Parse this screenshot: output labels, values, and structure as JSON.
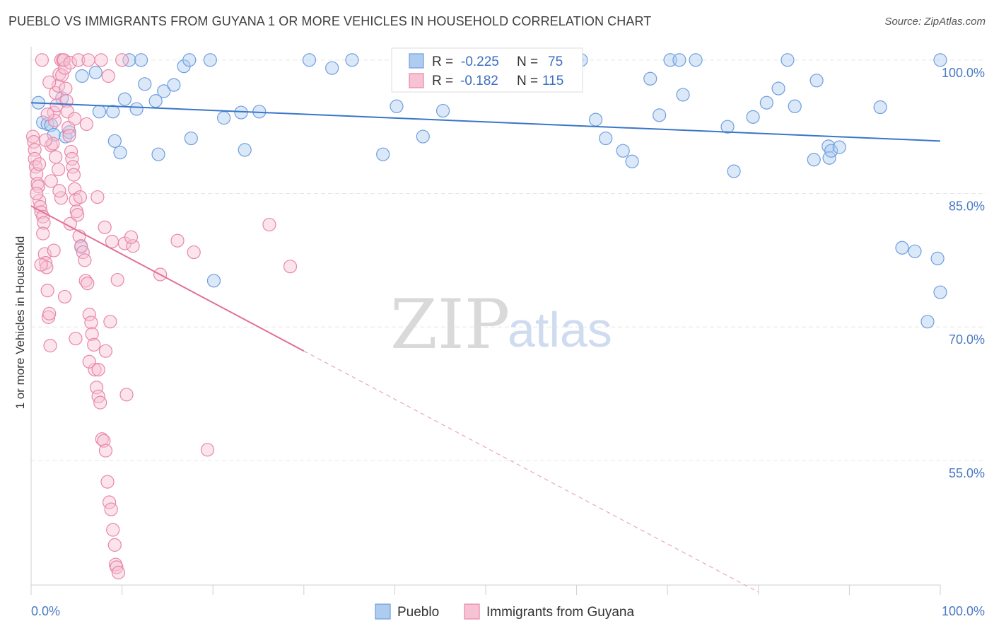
{
  "title": "PUEBLO VS IMMIGRANTS FROM GUYANA 1 OR MORE VEHICLES IN HOUSEHOLD CORRELATION CHART",
  "source": "Source: ZipAtlas.com",
  "watermark": {
    "zip": "ZIP",
    "atlas": "atlas"
  },
  "chart_data": {
    "type": "scatter",
    "ylabel": "1 or more Vehicles in Household",
    "xlim": [
      0,
      100
    ],
    "ylim": [
      41,
      101.5
    ],
    "x_tick_labels": [
      {
        "value": 0,
        "label": "0.0%"
      },
      {
        "value": 100,
        "label": "100.0%"
      }
    ],
    "y_tick_labels": [
      {
        "value": 100,
        "label": "100.0%"
      },
      {
        "value": 85,
        "label": "85.0%"
      },
      {
        "value": 70,
        "label": "70.0%"
      },
      {
        "value": 55,
        "label": "55.0%"
      }
    ],
    "grid": true,
    "legend": {
      "placement": "top-center",
      "r_label": "R =",
      "n_label": "N =",
      "entries": [
        {
          "series": "Pueblo",
          "r": "-0.225",
          "n": "75"
        },
        {
          "series": "Immigrants from Guyana",
          "r": "-0.182",
          "n": "115"
        }
      ]
    },
    "series": [
      {
        "name": "Pueblo",
        "color": "#6f9ee0",
        "fill": "#aecbf0",
        "trend": {
          "x0": 0,
          "y0": 95.2,
          "x1": 100,
          "y1": 90.9,
          "dashed_to": null
        },
        "points": [
          [
            0.8,
            95.2
          ],
          [
            1.3,
            93.0
          ],
          [
            1.8,
            92.8
          ],
          [
            2.2,
            92.7
          ],
          [
            2.5,
            91.6
          ],
          [
            3.4,
            95.7
          ],
          [
            3.8,
            91.4
          ],
          [
            4.2,
            91.9
          ],
          [
            5.6,
            98.2
          ],
          [
            7.1,
            98.6
          ],
          [
            7.5,
            94.2
          ],
          [
            9.0,
            94.2
          ],
          [
            9.2,
            90.9
          ],
          [
            9.8,
            89.6
          ],
          [
            10.3,
            95.6
          ],
          [
            10.8,
            100
          ],
          [
            11.6,
            94.5
          ],
          [
            12.1,
            100
          ],
          [
            12.5,
            97.3
          ],
          [
            13.7,
            95.4
          ],
          [
            14.0,
            89.4
          ],
          [
            14.6,
            96.5
          ],
          [
            15.7,
            97.2
          ],
          [
            16.8,
            99.3
          ],
          [
            17.4,
            100
          ],
          [
            17.6,
            91.2
          ],
          [
            19.7,
            100
          ],
          [
            20.1,
            75.2
          ],
          [
            21.2,
            93.5
          ],
          [
            23.1,
            94.1
          ],
          [
            23.5,
            89.9
          ],
          [
            25.1,
            94.2
          ],
          [
            30.6,
            100
          ],
          [
            33.1,
            99.1
          ],
          [
            35.3,
            100
          ],
          [
            38.7,
            89.4
          ],
          [
            40.2,
            94.8
          ],
          [
            43.1,
            91.4
          ],
          [
            45.3,
            94.3
          ],
          [
            47.3,
            100
          ],
          [
            50.4,
            100
          ],
          [
            57.7,
            100
          ],
          [
            60.0,
            100
          ],
          [
            60.5,
            100
          ],
          [
            62.1,
            93.3
          ],
          [
            63.2,
            91.2
          ],
          [
            65.1,
            89.8
          ],
          [
            66.1,
            88.6
          ],
          [
            68.1,
            97.9
          ],
          [
            69.1,
            93.8
          ],
          [
            70.3,
            100
          ],
          [
            71.3,
            100
          ],
          [
            71.7,
            96.1
          ],
          [
            73.1,
            100
          ],
          [
            76.6,
            92.5
          ],
          [
            77.3,
            87.5
          ],
          [
            79.4,
            93.6
          ],
          [
            80.9,
            95.2
          ],
          [
            82.2,
            96.8
          ],
          [
            83.2,
            100
          ],
          [
            84.0,
            94.8
          ],
          [
            86.1,
            88.8
          ],
          [
            86.4,
            97.7
          ],
          [
            87.7,
            90.3
          ],
          [
            87.8,
            89.0
          ],
          [
            88.0,
            89.8
          ],
          [
            88.9,
            90.2
          ],
          [
            93.4,
            94.7
          ],
          [
            95.8,
            78.9
          ],
          [
            97.2,
            78.5
          ],
          [
            98.6,
            70.6
          ],
          [
            99.7,
            77.7
          ],
          [
            100.0,
            73.9
          ],
          [
            100,
            100
          ],
          [
            5.5,
            79.0
          ]
        ]
      },
      {
        "name": "Immigrants from Guyana",
        "color": "#e986a8",
        "fill": "#f7c3d4",
        "trend": {
          "x0": 0,
          "y0": 83.6,
          "x1": 30,
          "y1": 67.3,
          "dashed_to": [
            80,
            40.2
          ]
        },
        "points": [
          [
            0.2,
            91.4
          ],
          [
            0.3,
            90.8
          ],
          [
            0.4,
            89.9
          ],
          [
            0.4,
            88.9
          ],
          [
            0.5,
            88.0
          ],
          [
            0.6,
            87.2
          ],
          [
            0.7,
            86.1
          ],
          [
            0.8,
            85.8
          ],
          [
            0.9,
            84.2
          ],
          [
            1.0,
            83.5
          ],
          [
            1.1,
            82.9
          ],
          [
            1.3,
            82.4
          ],
          [
            1.4,
            81.7
          ],
          [
            1.5,
            78.2
          ],
          [
            1.6,
            77.2
          ],
          [
            1.7,
            76.7
          ],
          [
            1.8,
            74.1
          ],
          [
            1.9,
            71.1
          ],
          [
            2.0,
            71.5
          ],
          [
            2.1,
            67.9
          ],
          [
            2.2,
            90.4
          ],
          [
            2.4,
            90.6
          ],
          [
            2.5,
            94.1
          ],
          [
            2.6,
            93.2
          ],
          [
            2.7,
            96.3
          ],
          [
            2.8,
            94.9
          ],
          [
            3.0,
            97.1
          ],
          [
            3.1,
            98.4
          ],
          [
            3.3,
            100
          ],
          [
            3.4,
            98.3
          ],
          [
            3.5,
            100
          ],
          [
            3.7,
            99.1
          ],
          [
            3.8,
            96.8
          ],
          [
            3.9,
            95.4
          ],
          [
            4.0,
            94.2
          ],
          [
            4.1,
            92.4
          ],
          [
            4.2,
            91.5
          ],
          [
            4.4,
            89.7
          ],
          [
            4.5,
            88.9
          ],
          [
            4.6,
            88.0
          ],
          [
            4.7,
            87.1
          ],
          [
            4.8,
            85.5
          ],
          [
            4.9,
            84.3
          ],
          [
            5.0,
            83.0
          ],
          [
            5.1,
            82.6
          ],
          [
            5.3,
            80.2
          ],
          [
            5.5,
            79.1
          ],
          [
            5.7,
            78.4
          ],
          [
            5.9,
            77.5
          ],
          [
            6.0,
            75.2
          ],
          [
            6.2,
            74.9
          ],
          [
            6.4,
            71.4
          ],
          [
            6.6,
            70.5
          ],
          [
            6.7,
            69.2
          ],
          [
            6.9,
            68.0
          ],
          [
            7.0,
            65.2
          ],
          [
            7.2,
            63.2
          ],
          [
            7.4,
            62.2
          ],
          [
            7.6,
            61.5
          ],
          [
            7.8,
            57.4
          ],
          [
            8.0,
            57.2
          ],
          [
            8.2,
            56.1
          ],
          [
            8.4,
            52.6
          ],
          [
            8.6,
            50.3
          ],
          [
            8.8,
            49.5
          ],
          [
            9.0,
            47.2
          ],
          [
            9.2,
            45.5
          ],
          [
            9.3,
            43.3
          ],
          [
            9.4,
            43.0
          ],
          [
            9.6,
            42.4
          ],
          [
            1.2,
            100
          ],
          [
            2.0,
            97.5
          ],
          [
            3.6,
            100
          ],
          [
            4.3,
            99.7
          ],
          [
            5.2,
            100
          ],
          [
            6.3,
            100
          ],
          [
            7.7,
            100
          ],
          [
            8.5,
            98.2
          ],
          [
            10.0,
            100
          ],
          [
            4.8,
            93.4
          ],
          [
            6.1,
            92.8
          ],
          [
            3.3,
            84.5
          ],
          [
            5.4,
            84.6
          ],
          [
            7.3,
            84.6
          ],
          [
            8.1,
            81.2
          ],
          [
            8.9,
            79.6
          ],
          [
            10.3,
            79.4
          ],
          [
            11.2,
            79.1
          ],
          [
            14.2,
            75.9
          ],
          [
            16.1,
            79.7
          ],
          [
            17.9,
            78.4
          ],
          [
            19.4,
            56.2
          ],
          [
            26.2,
            81.5
          ],
          [
            28.5,
            76.8
          ],
          [
            6.4,
            66.1
          ],
          [
            7.4,
            65.2
          ],
          [
            8.2,
            67.3
          ],
          [
            8.7,
            70.6
          ],
          [
            9.5,
            75.3
          ],
          [
            10.5,
            62.4
          ],
          [
            11.0,
            80.1
          ],
          [
            3.1,
            85.3
          ],
          [
            2.7,
            89.1
          ],
          [
            1.6,
            91.0
          ],
          [
            0.9,
            88.3
          ],
          [
            1.3,
            80.5
          ],
          [
            2.2,
            86.4
          ],
          [
            4.3,
            81.6
          ],
          [
            1.1,
            77.0
          ],
          [
            2.5,
            78.6
          ],
          [
            3.7,
            73.4
          ],
          [
            4.9,
            68.7
          ],
          [
            0.6,
            85.0
          ],
          [
            1.8,
            93.9
          ],
          [
            3.0,
            87.7
          ]
        ]
      }
    ]
  }
}
